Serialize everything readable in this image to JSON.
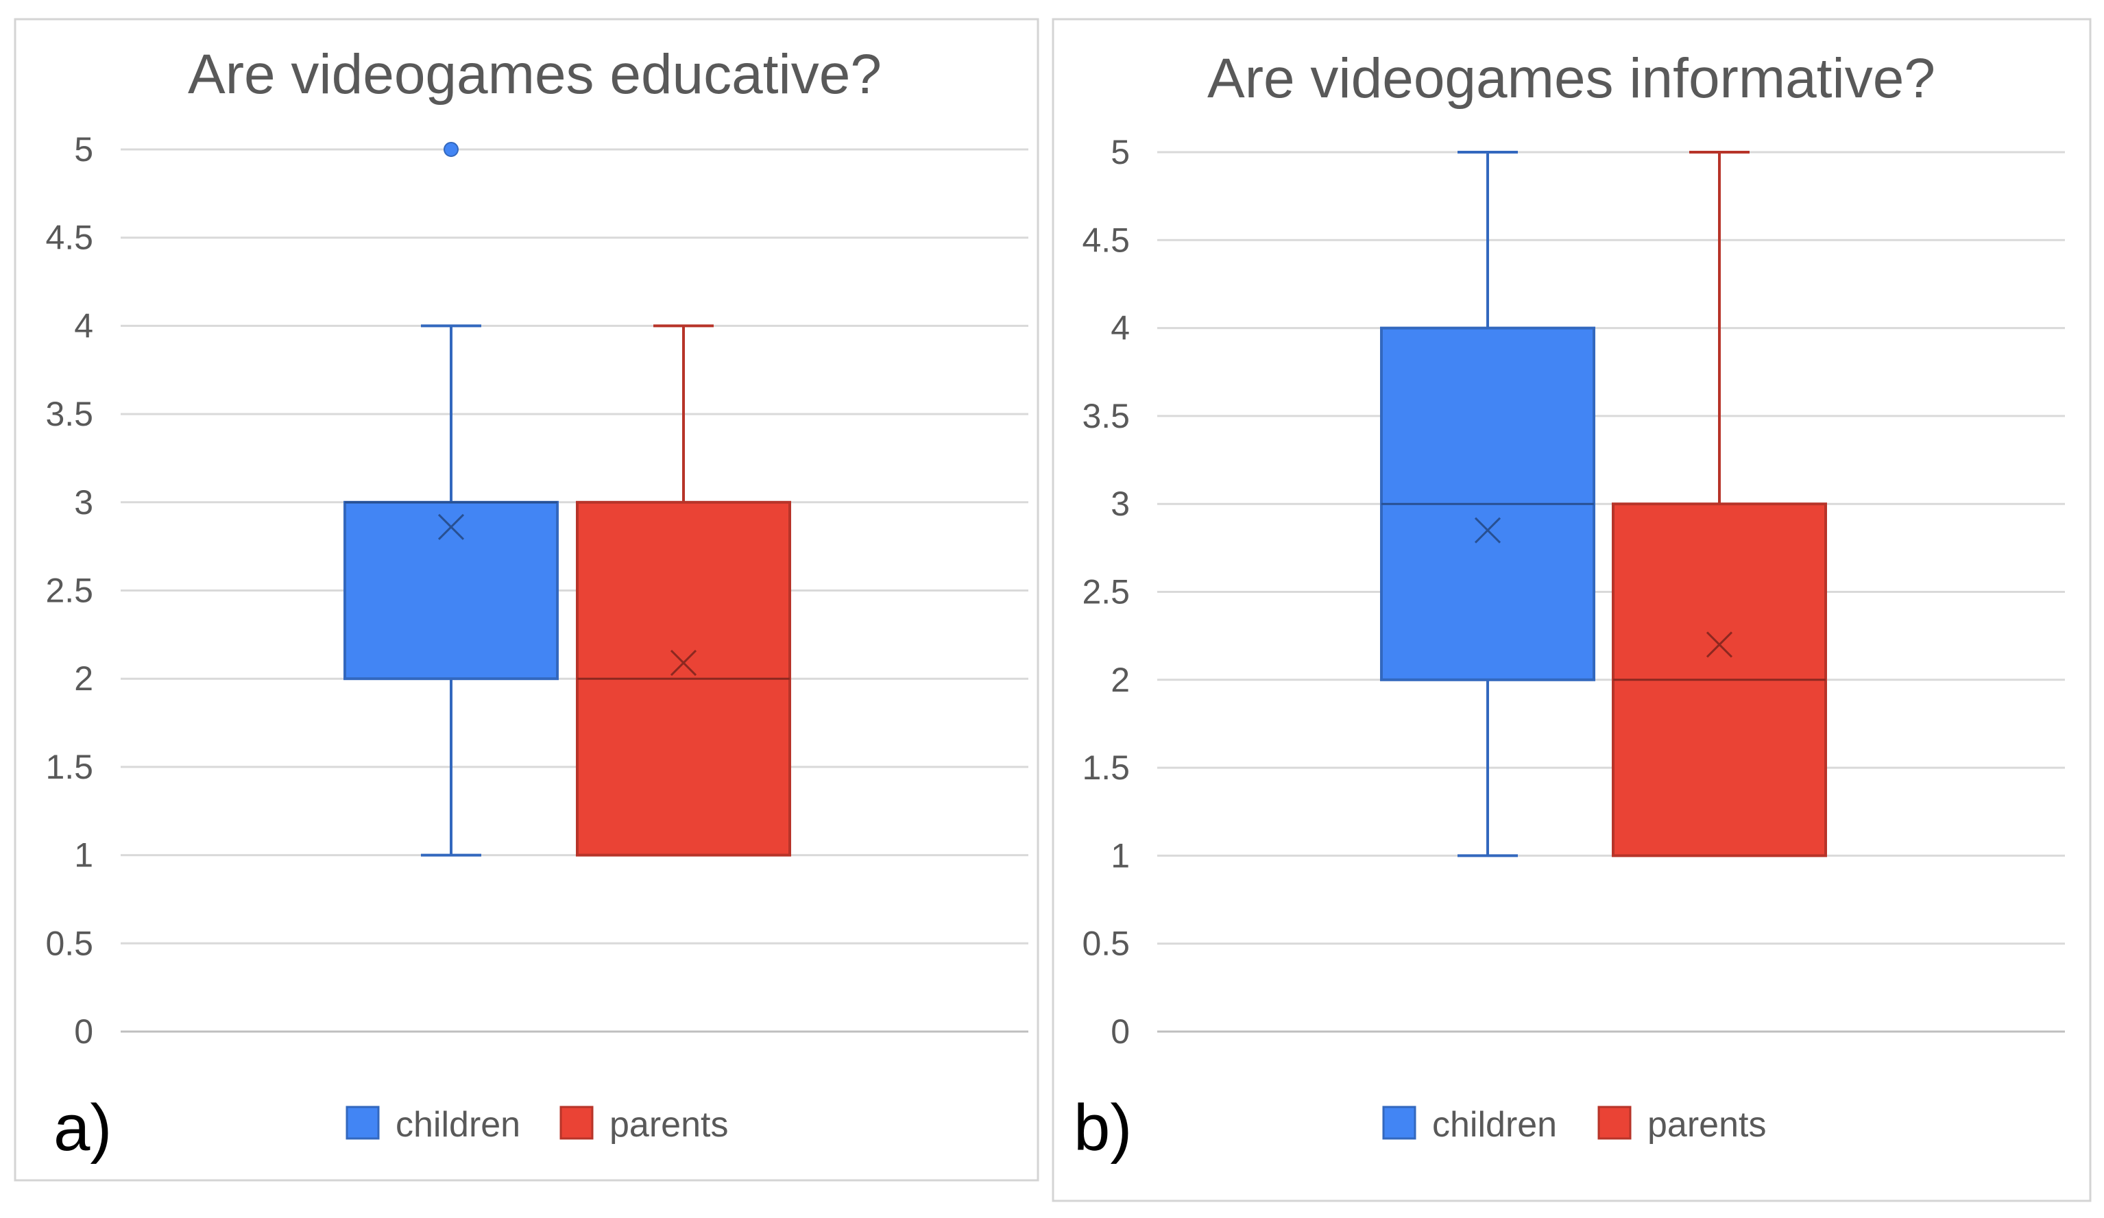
{
  "chart_data": [
    {
      "panel_label": "a)",
      "type": "box",
      "title": "Are videogames educative?",
      "xlabel": "",
      "ylabel": "",
      "ylim": [
        0,
        5
      ],
      "yticks": [
        0,
        0.5,
        1,
        1.5,
        2,
        2.5,
        3,
        3.5,
        4,
        4.5,
        5
      ],
      "grid": true,
      "legend_position": "bottom",
      "series": [
        {
          "name": "children",
          "color": "#4285f4",
          "whisker_low": 1,
          "q1": 2,
          "median": 3,
          "q3": 3,
          "whisker_high": 4,
          "mean": 2.86,
          "outliers": [
            5
          ]
        },
        {
          "name": "parents",
          "color": "#ea4335",
          "whisker_low": 1,
          "q1": 1,
          "median": 2,
          "q3": 3,
          "whisker_high": 4,
          "mean": 2.09,
          "outliers": []
        }
      ]
    },
    {
      "panel_label": "b)",
      "type": "box",
      "title": "Are videogames informative?",
      "xlabel": "",
      "ylabel": "",
      "ylim": [
        0,
        5
      ],
      "yticks": [
        0,
        0.5,
        1,
        1.5,
        2,
        2.5,
        3,
        3.5,
        4,
        4.5,
        5
      ],
      "grid": true,
      "legend_position": "bottom",
      "series": [
        {
          "name": "children",
          "color": "#4285f4",
          "whisker_low": 1,
          "q1": 2,
          "median": 3,
          "q3": 4,
          "whisker_high": 5,
          "mean": 2.85,
          "outliers": []
        },
        {
          "name": "parents",
          "color": "#ea4335",
          "whisker_low": 1,
          "q1": 1,
          "median": 2,
          "q3": 3,
          "whisker_high": 5,
          "mean": 2.2,
          "outliers": []
        }
      ]
    }
  ]
}
